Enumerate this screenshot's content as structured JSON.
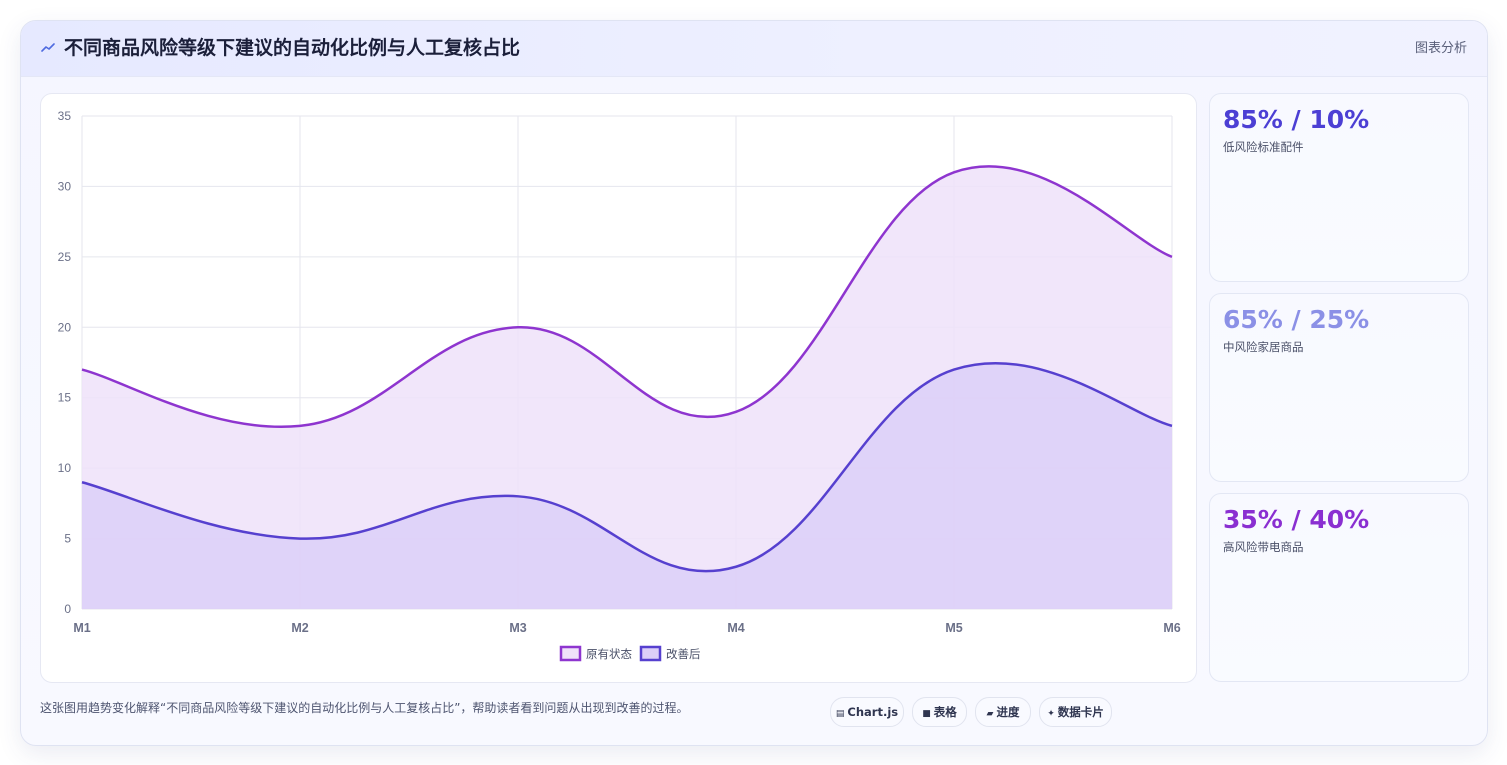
{
  "header": {
    "icon": "trend-line-icon",
    "title": "不同商品风险等级下建议的自动化比例与人工复核占比",
    "right_label": "图表分析"
  },
  "kpis": [
    {
      "value": "85% / 10%",
      "label": "低风险标准配件",
      "color": "#4c3fd4"
    },
    {
      "value": "65% / 25%",
      "label": "中风险家居商品",
      "color": "#8b90e6"
    },
    {
      "value": "35% / 40%",
      "label": "高风险带电商品",
      "color": "#8a2fd1"
    }
  ],
  "caption": "这张图用趋势变化解释“不同商品风险等级下建议的自动化比例与人工复核占比”，帮助读者看到问题从出现到改善的过程。",
  "chips": [
    {
      "icon": "chart-icon",
      "label": "Chart.js"
    },
    {
      "icon": "table-icon",
      "label": "表格"
    },
    {
      "icon": "progress-icon",
      "label": "进度"
    },
    {
      "icon": "sparkle-icon",
      "label": "数据卡片"
    }
  ],
  "chart_data": {
    "type": "area",
    "categories": [
      "M1",
      "M2",
      "M3",
      "M4",
      "M5",
      "M6"
    ],
    "ylim": [
      0,
      35
    ],
    "yticks": [
      0,
      5,
      10,
      15,
      20,
      25,
      30,
      35
    ],
    "grid": true,
    "legend_position": "bottom",
    "series": [
      {
        "name": "原有状态",
        "values": [
          17,
          13,
          20,
          14,
          31,
          25
        ],
        "color": "#8e35cf",
        "fill": "#efe2f9"
      },
      {
        "name": "改善后",
        "values": [
          9,
          5,
          8,
          3,
          17,
          13
        ],
        "color": "#5640cf",
        "fill": "#dccff8"
      }
    ]
  }
}
